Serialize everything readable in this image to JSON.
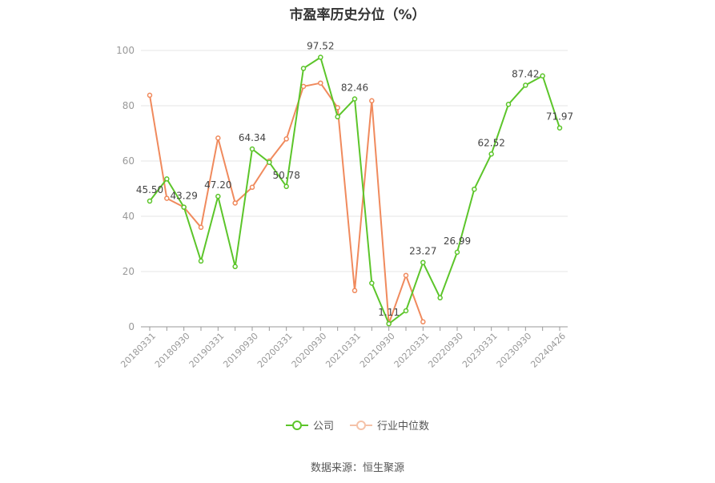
{
  "chart_data": {
    "type": "line",
    "title": "市盈率历史分位（%）",
    "categories": [
      "20180331",
      "",
      "20180930",
      "",
      "20190331",
      "",
      "20190930",
      "",
      "20200331",
      "",
      "20200930",
      "",
      "20210331",
      "",
      "20210930",
      "",
      "20220331",
      "",
      "20220930",
      "",
      "20230331",
      "",
      "20230930",
      "",
      "20240426"
    ],
    "ylim": [
      0,
      100
    ],
    "yticks": [
      0,
      20,
      40,
      60,
      80,
      100
    ],
    "grid": true,
    "legend_position": "bottom",
    "series": [
      {
        "name": "公司",
        "color": "#5cc52a",
        "values": [
          45.5,
          53.5,
          43.29,
          23.8,
          47.2,
          21.8,
          64.34,
          59.5,
          50.78,
          93.5,
          97.52,
          76.0,
          82.46,
          15.8,
          1.11,
          5.8,
          23.27,
          10.5,
          26.99,
          49.8,
          62.52,
          80.5,
          87.42,
          90.8,
          71.97
        ],
        "labels": [
          "45.50",
          null,
          "43.29",
          null,
          "47.20",
          null,
          "64.34",
          null,
          "50.78",
          null,
          "97.52",
          null,
          "82.46",
          null,
          "1.11",
          null,
          "23.27",
          null,
          "26.99",
          null,
          "62.52",
          null,
          "87.42",
          null,
          "71.97"
        ]
      },
      {
        "name": "行业中位数",
        "color": "#f08a5d",
        "values": [
          83.8,
          46.5,
          43.3,
          36.0,
          68.3,
          44.8,
          50.5,
          60.0,
          68.0,
          87.0,
          88.2,
          79.3,
          13.1,
          81.8,
          1.2,
          18.6,
          1.8,
          null,
          null,
          null,
          null,
          null,
          null,
          null,
          null
        ]
      }
    ]
  },
  "legend": {
    "company": "公司",
    "industry": "行业中位数"
  },
  "source": "数据来源：恒生聚源"
}
